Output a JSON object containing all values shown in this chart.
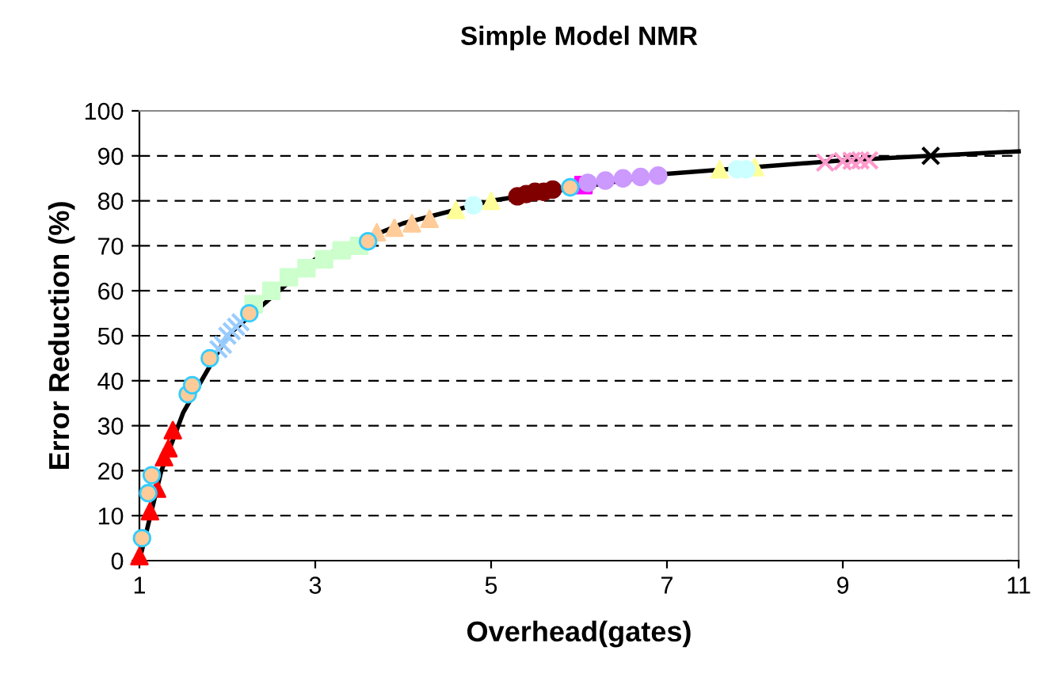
{
  "chart_data": {
    "type": "scatter",
    "title": "Simple Model NMR",
    "xlabel": "Overhead(gates)",
    "ylabel": "Error Reduction (%)",
    "xlim": [
      1,
      11
    ],
    "ylim": [
      0,
      100
    ],
    "xticks": [
      1,
      3,
      5,
      7,
      9,
      11
    ],
    "yticks": [
      0,
      10,
      20,
      30,
      40,
      50,
      60,
      70,
      80,
      90,
      100
    ],
    "grid": "y",
    "legend": false,
    "series": [
      {
        "type": "line",
        "color": "#000000",
        "marker": "none",
        "line_style": "solid",
        "x": [
          1,
          1.25,
          1.5,
          2,
          3,
          4,
          5,
          7,
          8,
          9,
          10,
          11
        ],
        "values": [
          0,
          20,
          33,
          50,
          67,
          75,
          80,
          86,
          87.5,
          89,
          90,
          91
        ]
      },
      {
        "color": "#ff0000",
        "marker": "triangle",
        "x": [
          1.0,
          1.12,
          1.2,
          1.28,
          1.33,
          1.38
        ],
        "values": [
          1,
          11,
          16,
          23,
          25,
          29
        ]
      },
      {
        "color": "#99ccff",
        "marker": "cross",
        "x": [
          1.9,
          1.95,
          2.0,
          2.05,
          2.1,
          2.15
        ],
        "values": [
          47,
          48,
          50,
          51,
          52,
          53
        ]
      },
      {
        "color": "#ccffcc",
        "marker": "square",
        "x": [
          2.3,
          2.5,
          2.7,
          2.9,
          3.1,
          3.3,
          3.5
        ],
        "values": [
          57,
          60,
          63,
          65,
          67,
          69,
          70
        ]
      },
      {
        "color": "#ffcc99",
        "marker": "triangle",
        "x": [
          3.7,
          3.9,
          4.1,
          4.3
        ],
        "values": [
          73,
          74,
          75,
          76
        ]
      },
      {
        "color": "#ffff99",
        "marker": "triangle",
        "x": [
          4.6,
          5.0,
          7.6,
          8.0
        ],
        "values": [
          78,
          80,
          87,
          87.5
        ]
      },
      {
        "color": "#ccffff",
        "marker": "circle",
        "x": [
          4.8,
          7.8,
          7.9
        ],
        "values": [
          79,
          87,
          87
        ]
      },
      {
        "color": "#800000",
        "marker": "circle",
        "x": [
          5.3,
          5.4,
          5.5,
          5.6,
          5.7
        ],
        "values": [
          81,
          81.5,
          82,
          82,
          82.5
        ]
      },
      {
        "color": "#ff00ff",
        "marker": "square",
        "x": [
          6.05
        ],
        "values": [
          83.5
        ]
      },
      {
        "color": "#cc99ff",
        "marker": "circle",
        "x": [
          6.1,
          6.3,
          6.5,
          6.7,
          6.9
        ],
        "values": [
          84,
          84.5,
          85,
          85.3,
          85.6
        ]
      },
      {
        "color": "#ff99cc",
        "marker": "cross",
        "x": [
          8.8,
          9.0,
          9.1,
          9.2,
          9.3
        ],
        "values": [
          88.5,
          88.8,
          88.9,
          89,
          89
        ]
      },
      {
        "color": "#000000",
        "marker": "cross",
        "x": [
          10
        ],
        "values": [
          90
        ]
      },
      {
        "color": "#ffcc99",
        "marker": "circle",
        "x": [
          1.03,
          1.1,
          1.14,
          1.55,
          1.6,
          1.8,
          2.25,
          3.6,
          5.9
        ],
        "values": [
          5,
          15,
          19,
          37,
          39,
          45,
          55,
          71,
          83
        ]
      }
    ]
  }
}
